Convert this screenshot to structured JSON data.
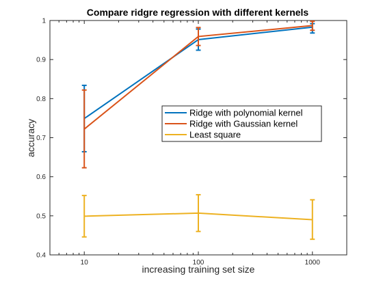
{
  "chart_data": {
    "type": "line",
    "title": "Compare ridgre regression with different kernels",
    "xlabel": "increasing training set size",
    "ylabel": "accuracy",
    "x_scale": "log",
    "x": [
      10,
      100,
      1000
    ],
    "x_tick_labels": [
      "10",
      "100",
      "1000"
    ],
    "xlim": [
      5,
      2000
    ],
    "ylim": [
      0.4,
      1.0
    ],
    "y_ticks": [
      0.4,
      0.5,
      0.6,
      0.7,
      0.8,
      0.9,
      1.0
    ],
    "y_tick_labels": [
      "0.4",
      "0.5",
      "0.6",
      "0.7",
      "0.8",
      "0.9",
      "1"
    ],
    "grid": false,
    "legend_position": "center-right",
    "series": [
      {
        "name": "Ridge with polynomial kernel",
        "color": "#0072BD",
        "values": [
          0.749,
          0.951,
          0.983
        ],
        "error_low": [
          0.664,
          0.924,
          0.968
        ],
        "error_high": [
          0.834,
          0.978,
          0.992
        ]
      },
      {
        "name": "Ridge with Gaussian kernel",
        "color": "#D95319",
        "values": [
          0.722,
          0.959,
          0.987
        ],
        "error_low": [
          0.623,
          0.936,
          0.975
        ],
        "error_high": [
          0.822,
          0.982,
          0.998
        ]
      },
      {
        "name": "Least square",
        "color": "#EDB120",
        "values": [
          0.499,
          0.507,
          0.49
        ],
        "error_low": [
          0.446,
          0.46,
          0.44
        ],
        "error_high": [
          0.552,
          0.554,
          0.541
        ]
      }
    ]
  }
}
